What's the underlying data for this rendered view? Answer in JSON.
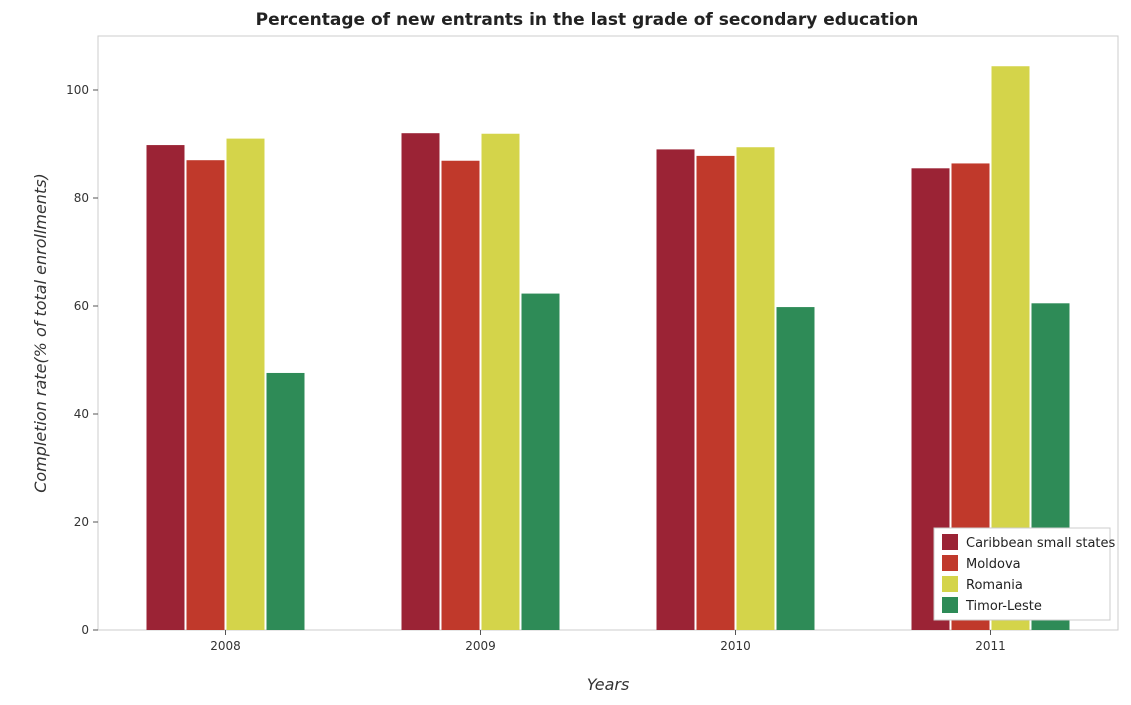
{
  "chart_data": {
    "type": "bar",
    "title": "Percentage of new entrants in the last grade of secondary education",
    "xlabel": "Years",
    "ylabel": "Completion rate(% of total enrollments)",
    "categories": [
      "2008",
      "2009",
      "2010",
      "2011"
    ],
    "ylim": [
      0,
      110
    ],
    "yticks": [
      0,
      20,
      40,
      60,
      80,
      100
    ],
    "grid": false,
    "legend_position": "bottom-right",
    "series": [
      {
        "name": "Caribbean small states",
        "color": "#9b2335",
        "values": [
          89.8,
          92.0,
          89.0,
          85.5
        ]
      },
      {
        "name": "Moldova",
        "color": "#c0392b",
        "values": [
          87.0,
          86.9,
          87.8,
          86.4
        ]
      },
      {
        "name": "Romania",
        "color": "#d4d44a",
        "values": [
          91.0,
          91.9,
          89.4,
          104.4
        ]
      },
      {
        "name": "Timor-Leste",
        "color": "#2e8b57",
        "values": [
          47.6,
          62.3,
          59.8,
          60.5
        ]
      }
    ]
  }
}
